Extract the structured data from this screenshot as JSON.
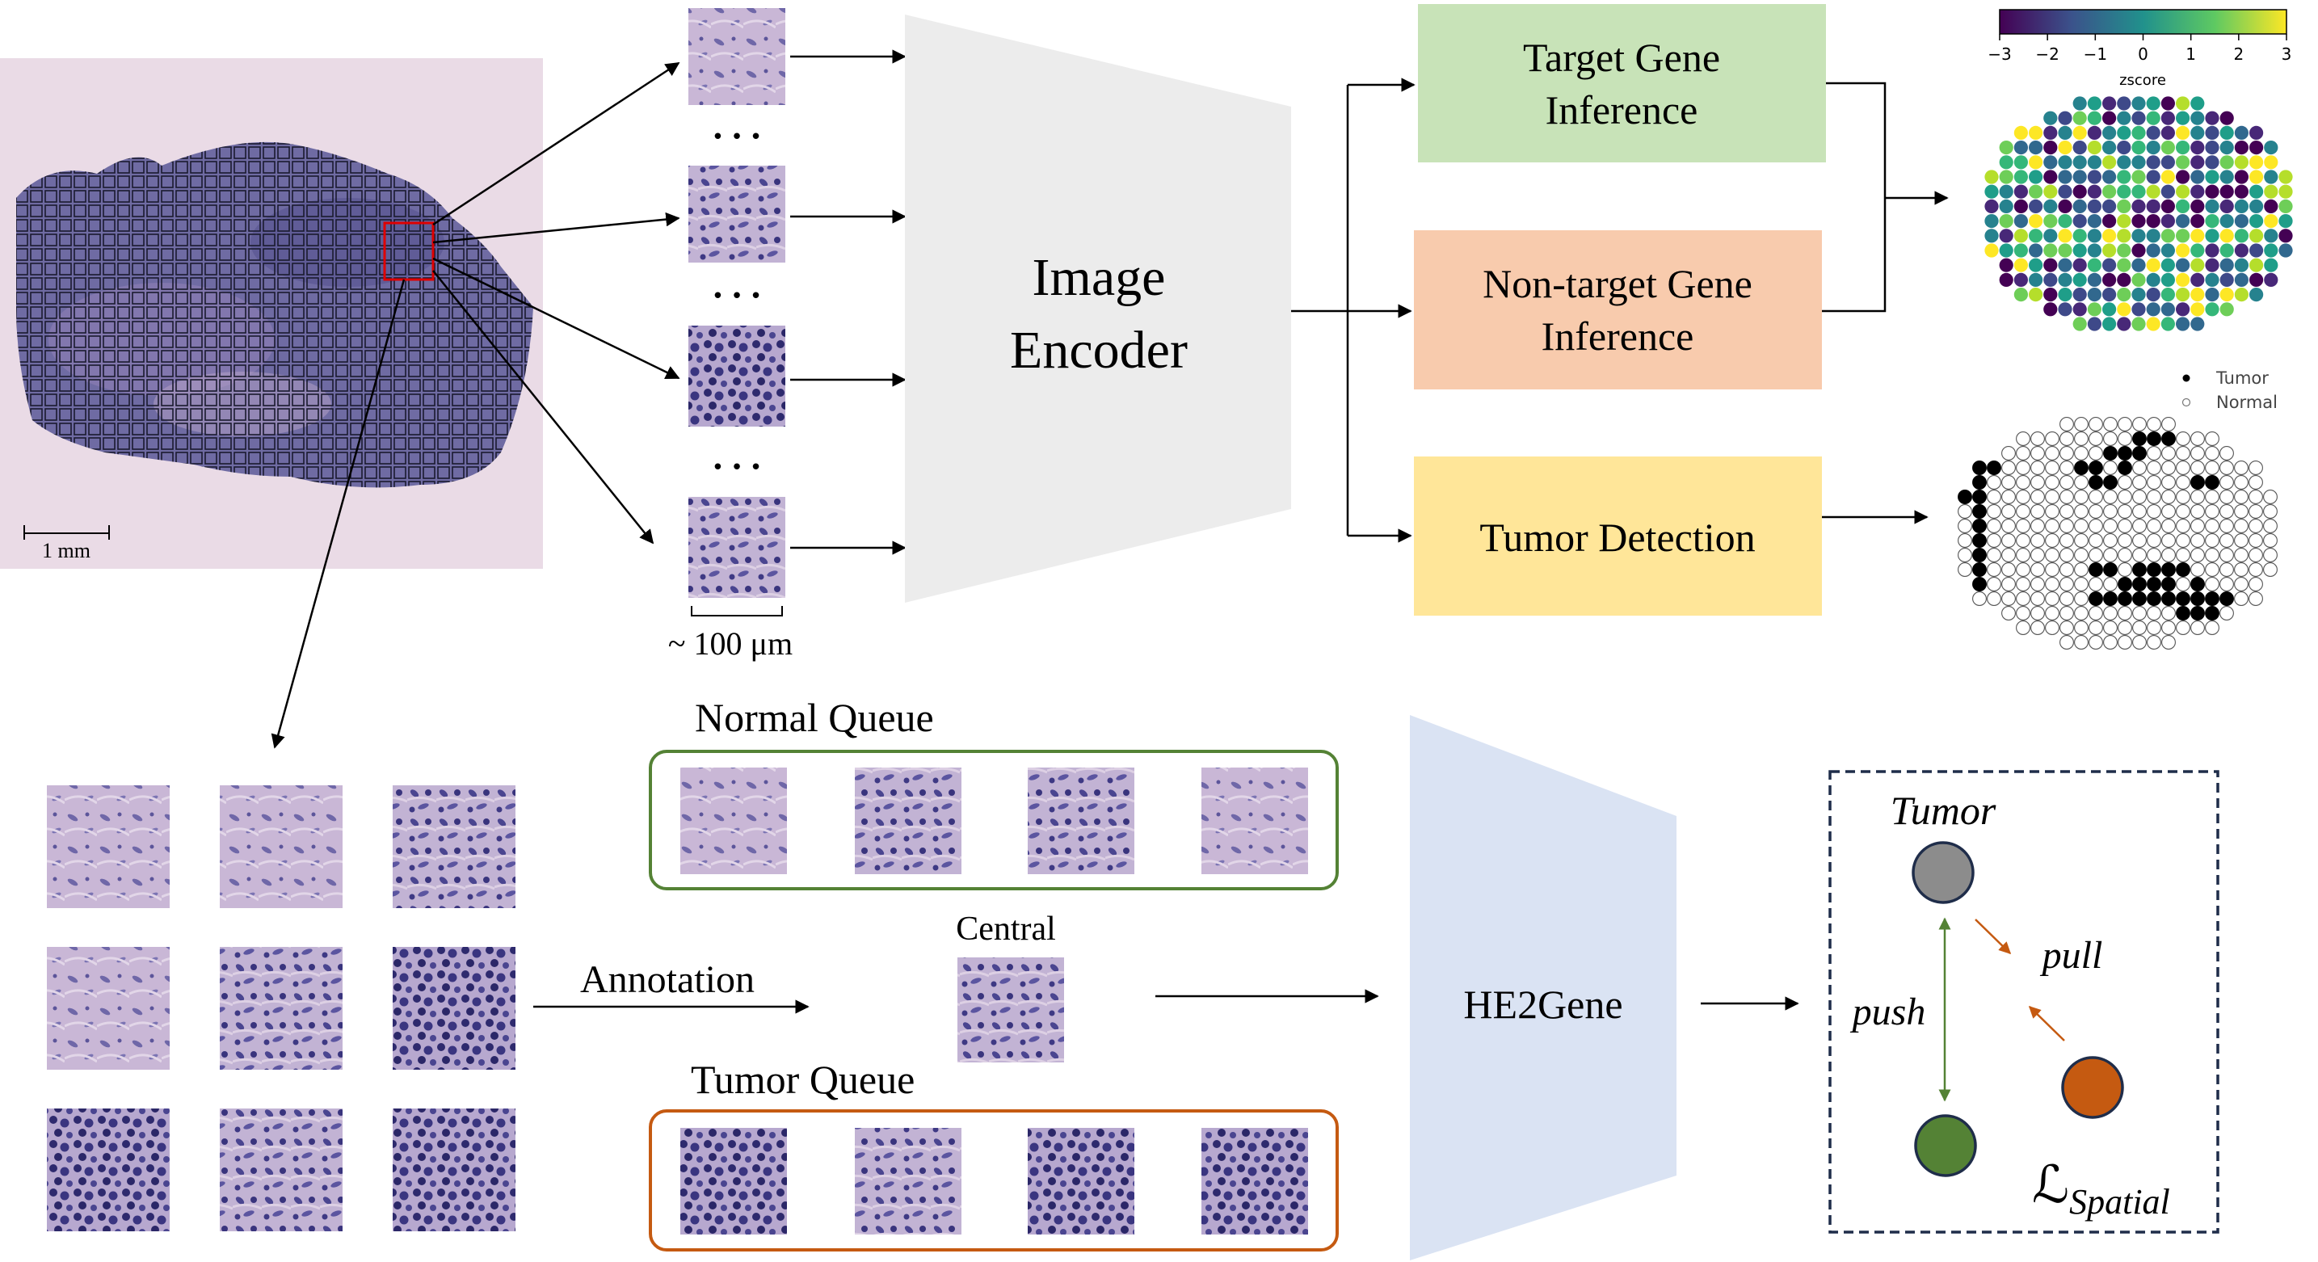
{
  "slide": {
    "scale_bar_label": "1 mm"
  },
  "patch_column": {
    "ellipsis": "• • •",
    "size_label": "~ 100 μm"
  },
  "image_encoder": {
    "label_line1": "Image",
    "label_line2": "Encoder"
  },
  "heads": {
    "target_gene": {
      "line1": "Target Gene",
      "line2": "Inference",
      "color": "#c8e3b8"
    },
    "non_target_gene": {
      "line1": "Non-target Gene",
      "line2": "Inference",
      "color": "#f8cbad"
    },
    "tumor_detection": {
      "line1": "Tumor Detection",
      "color": "#ffe699"
    }
  },
  "zscore_colorbar": {
    "label": "zscore",
    "ticks": [
      "−3",
      "−2",
      "−1",
      "0",
      "1",
      "2",
      "3"
    ]
  },
  "tumor_legend": {
    "tumor": "Tumor",
    "normal": "Normal"
  },
  "annotation": {
    "label": "Annotation"
  },
  "queues": {
    "normal": {
      "title": "Normal Queue",
      "border_color": "#548235"
    },
    "central": {
      "title": "Central"
    },
    "tumor": {
      "title": "Tumor Queue",
      "border_color": "#c55a11"
    }
  },
  "he2gene": {
    "label": "HE2Gene"
  },
  "spatial_loss": {
    "tumor_label": "Tumor",
    "push_label": "push",
    "pull_label": "pull",
    "loss_symbol": "ℒ",
    "loss_subscript": "Spatial",
    "colors": {
      "tumor": "#8c8c8c",
      "normal": "#548235",
      "other": "#c55a11"
    }
  }
}
